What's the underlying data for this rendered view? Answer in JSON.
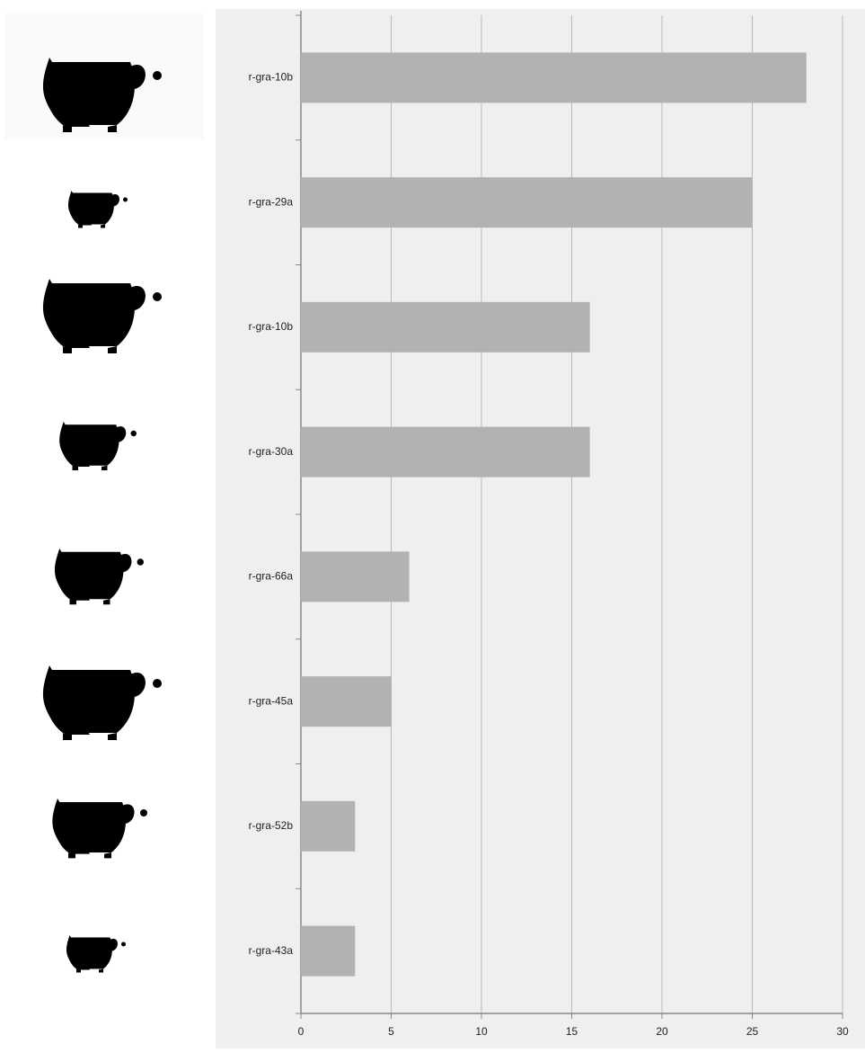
{
  "chart_data": {
    "type": "barh",
    "categories": [
      "r-gra-10b",
      "r-gra-29a",
      "r-gra-10b",
      "r-gra-30a",
      "r-gra-66a",
      "r-gra-45a",
      "r-gra-52b",
      "r-gra-43a"
    ],
    "values": [
      28,
      25,
      16,
      16,
      6,
      5,
      3,
      3
    ],
    "color": "#b1b2b4",
    "xlim": [
      0,
      30
    ],
    "xticks": [
      0,
      5,
      10,
      15,
      20,
      25,
      30
    ],
    "grid": true
  }
}
